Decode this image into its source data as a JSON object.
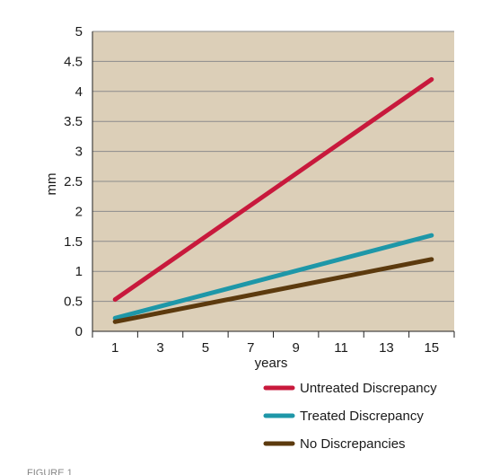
{
  "chart_data": {
    "type": "line",
    "title": "",
    "xlabel": "years",
    "ylabel": "mm",
    "x": [
      1,
      15
    ],
    "x_ticks": [
      "1",
      "3",
      "5",
      "7",
      "9",
      "11",
      "13",
      "15"
    ],
    "x_range": [
      1,
      15
    ],
    "y_ticks": [
      "0",
      "0.5",
      "1",
      "1.5",
      "2",
      "2.5",
      "3",
      "3.5",
      "4",
      "4.5",
      "5"
    ],
    "ylim": [
      0,
      5
    ],
    "grid": "horizontal",
    "plot_background": "#dccfb8",
    "legend_position": "bottom-right",
    "series": [
      {
        "name": "Untreated Discrepancy",
        "color": "#c8193c",
        "values": [
          0.53,
          4.2
        ]
      },
      {
        "name": "Treated Discrepancy",
        "color": "#1e97a8",
        "values": [
          0.22,
          1.6
        ]
      },
      {
        "name": "No Discrepancies",
        "color": "#5c3a0e",
        "values": [
          0.16,
          1.2
        ]
      }
    ]
  },
  "caption": "FIGURE 1"
}
